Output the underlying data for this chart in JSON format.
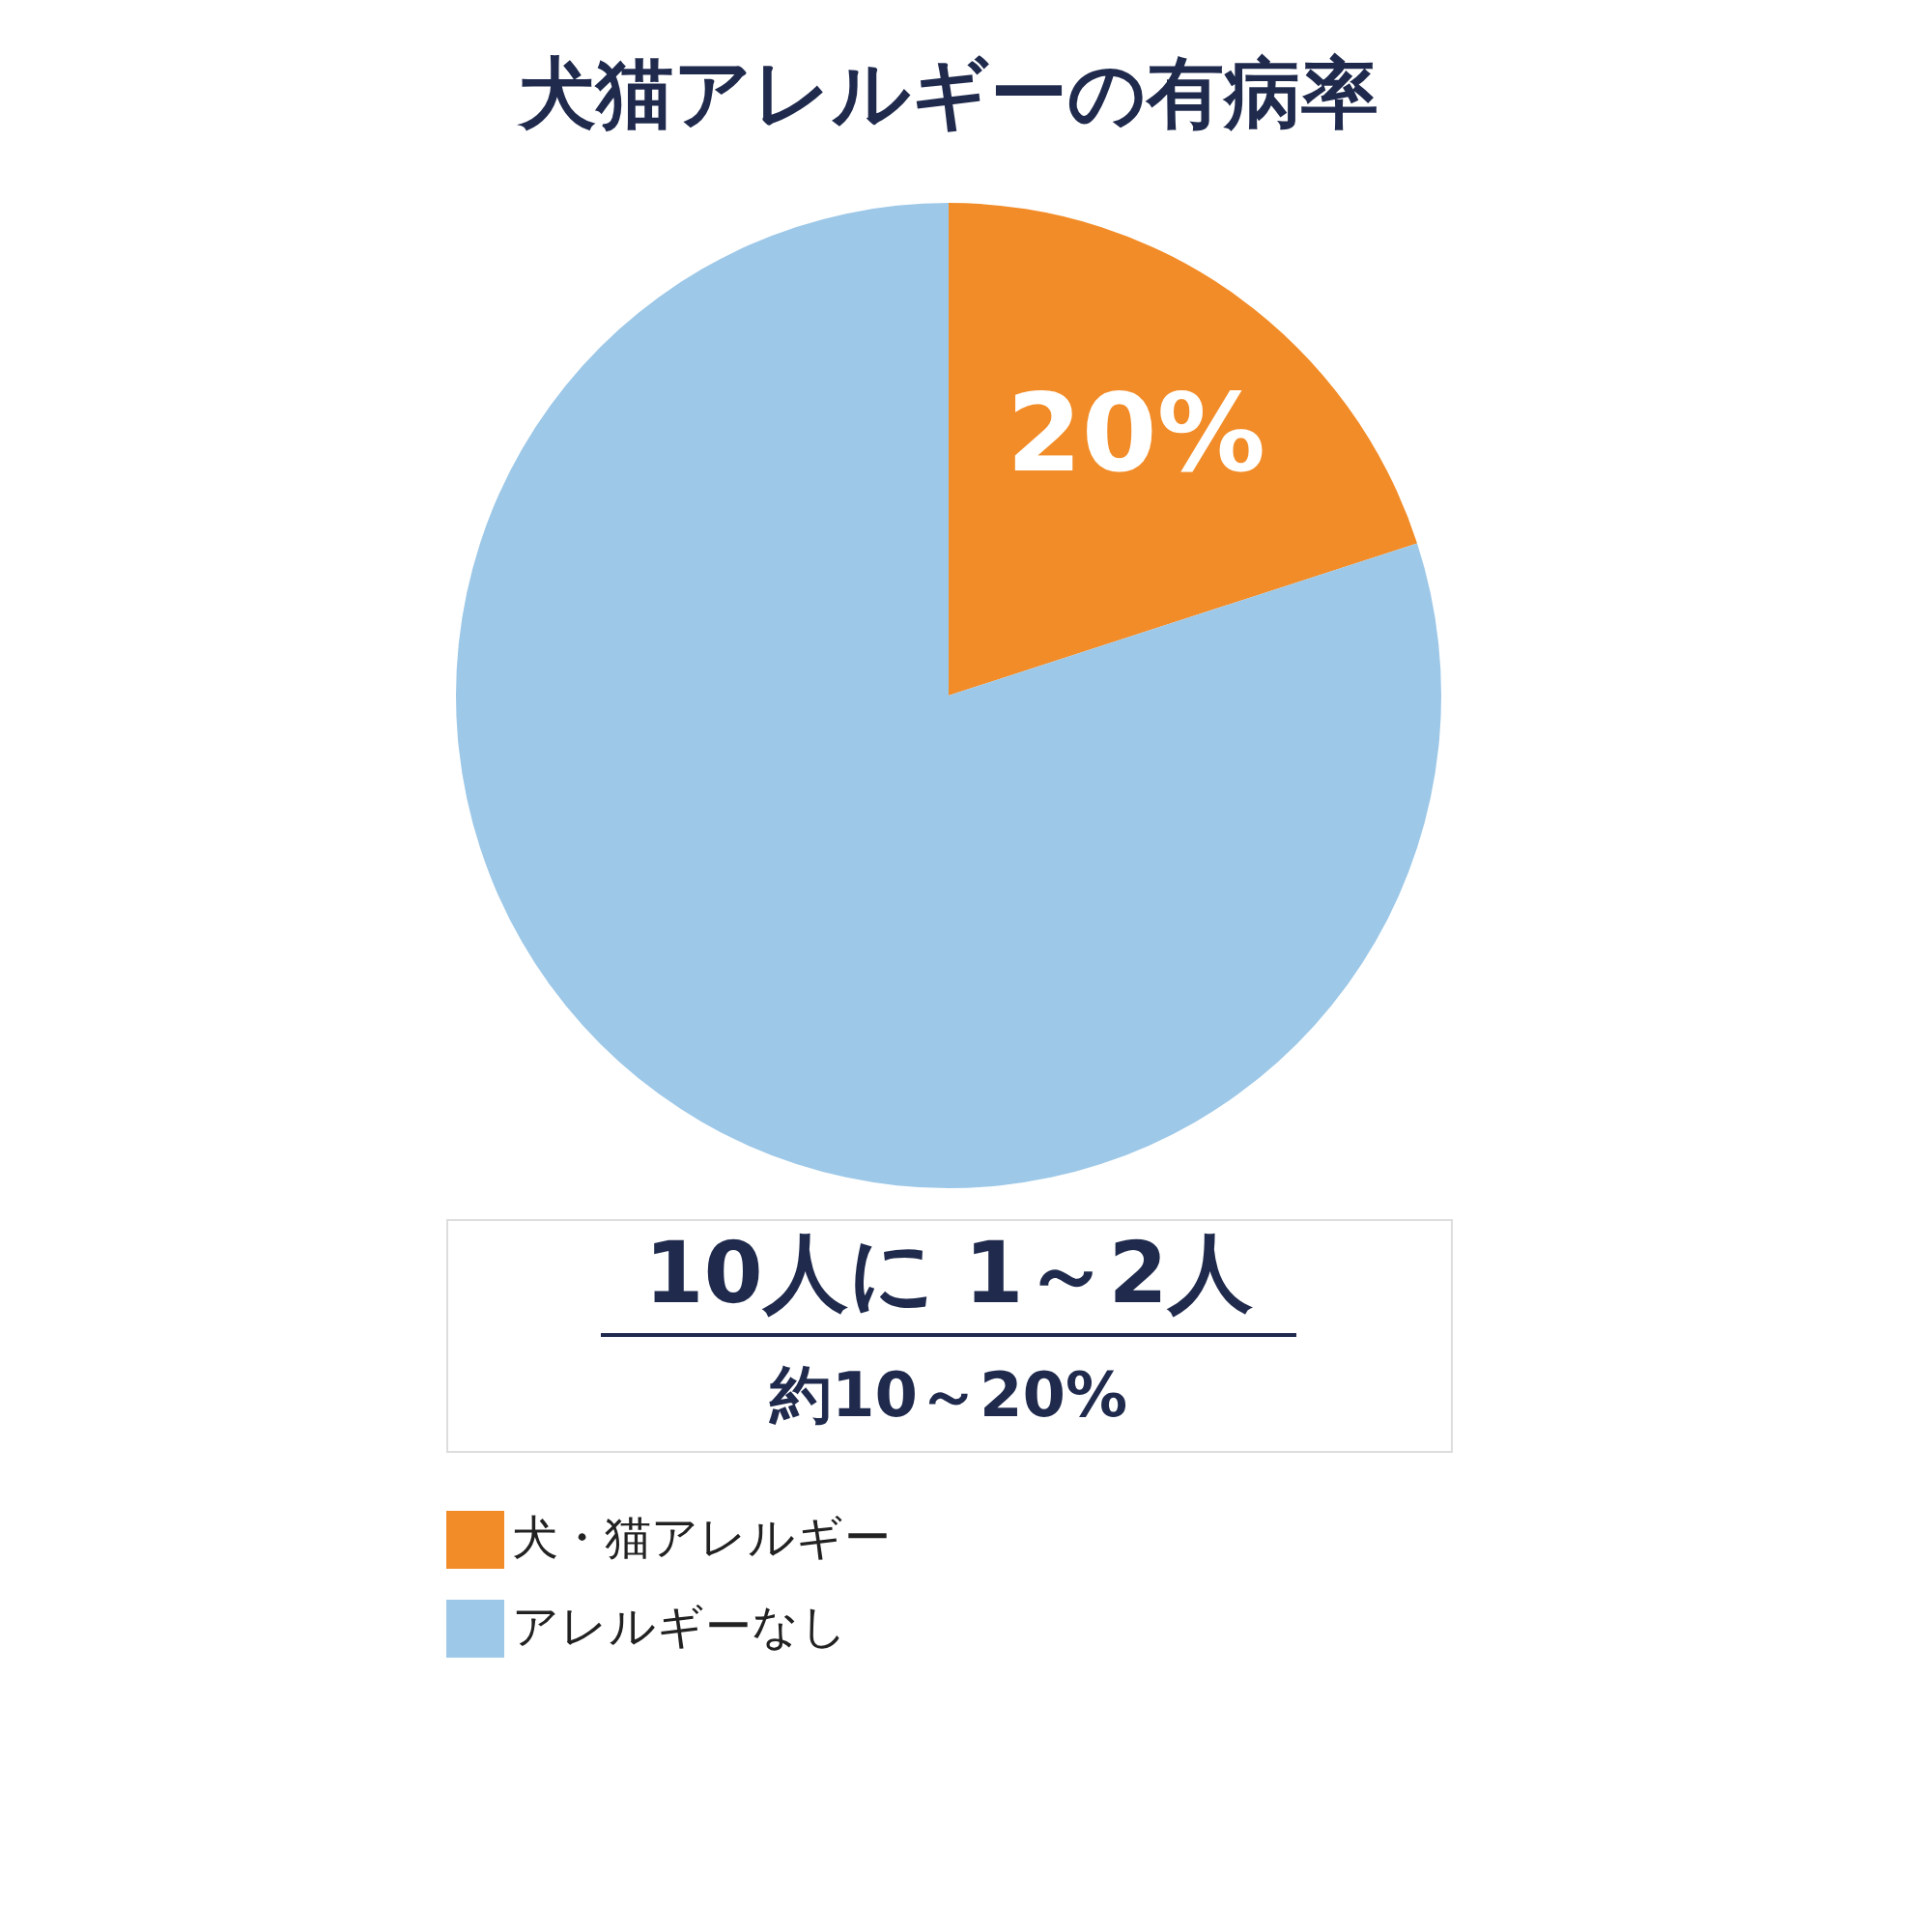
{
  "chart_data": {
    "type": "pie",
    "title": "犬猫アレルギーの有病率",
    "categories": [
      "犬・猫アレルギー",
      "アレルギーなし"
    ],
    "values": [
      20,
      80
    ],
    "colors": [
      "#f28c28",
      "#9dc8e8"
    ],
    "value_labels": [
      "20%",
      null
    ],
    "legend": "bottom",
    "annotations": [
      "10人に 1～2人",
      "約10～20%"
    ]
  }
}
